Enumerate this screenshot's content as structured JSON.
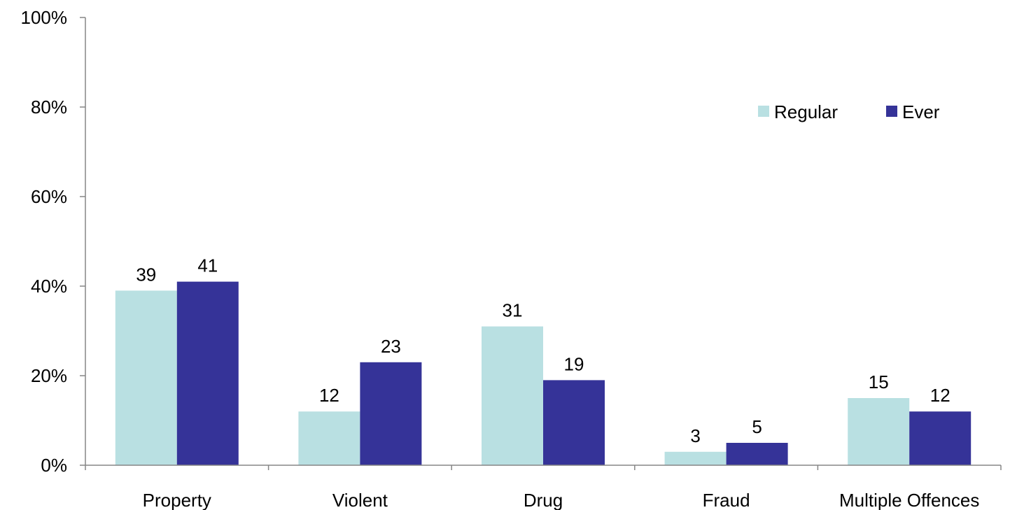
{
  "chart_data": {
    "type": "bar",
    "categories": [
      "Property",
      "Violent",
      "Drug",
      "Fraud",
      "Multiple Offences"
    ],
    "series": [
      {
        "name": "Regular",
        "values": [
          39,
          12,
          31,
          3,
          15
        ],
        "color": "#b9e0e2"
      },
      {
        "name": "Ever",
        "values": [
          41,
          23,
          19,
          5,
          12
        ],
        "color": "#353398"
      }
    ],
    "ylim": [
      0,
      100
    ],
    "y_tick_values": [
      0,
      20,
      40,
      60,
      80,
      100
    ],
    "y_tick_labels": [
      "0%",
      "20%",
      "40%",
      "60%",
      "80%",
      "100%"
    ],
    "data_labels": true,
    "grid": false,
    "legend_position": "top-right",
    "axis_color": "#868686"
  }
}
